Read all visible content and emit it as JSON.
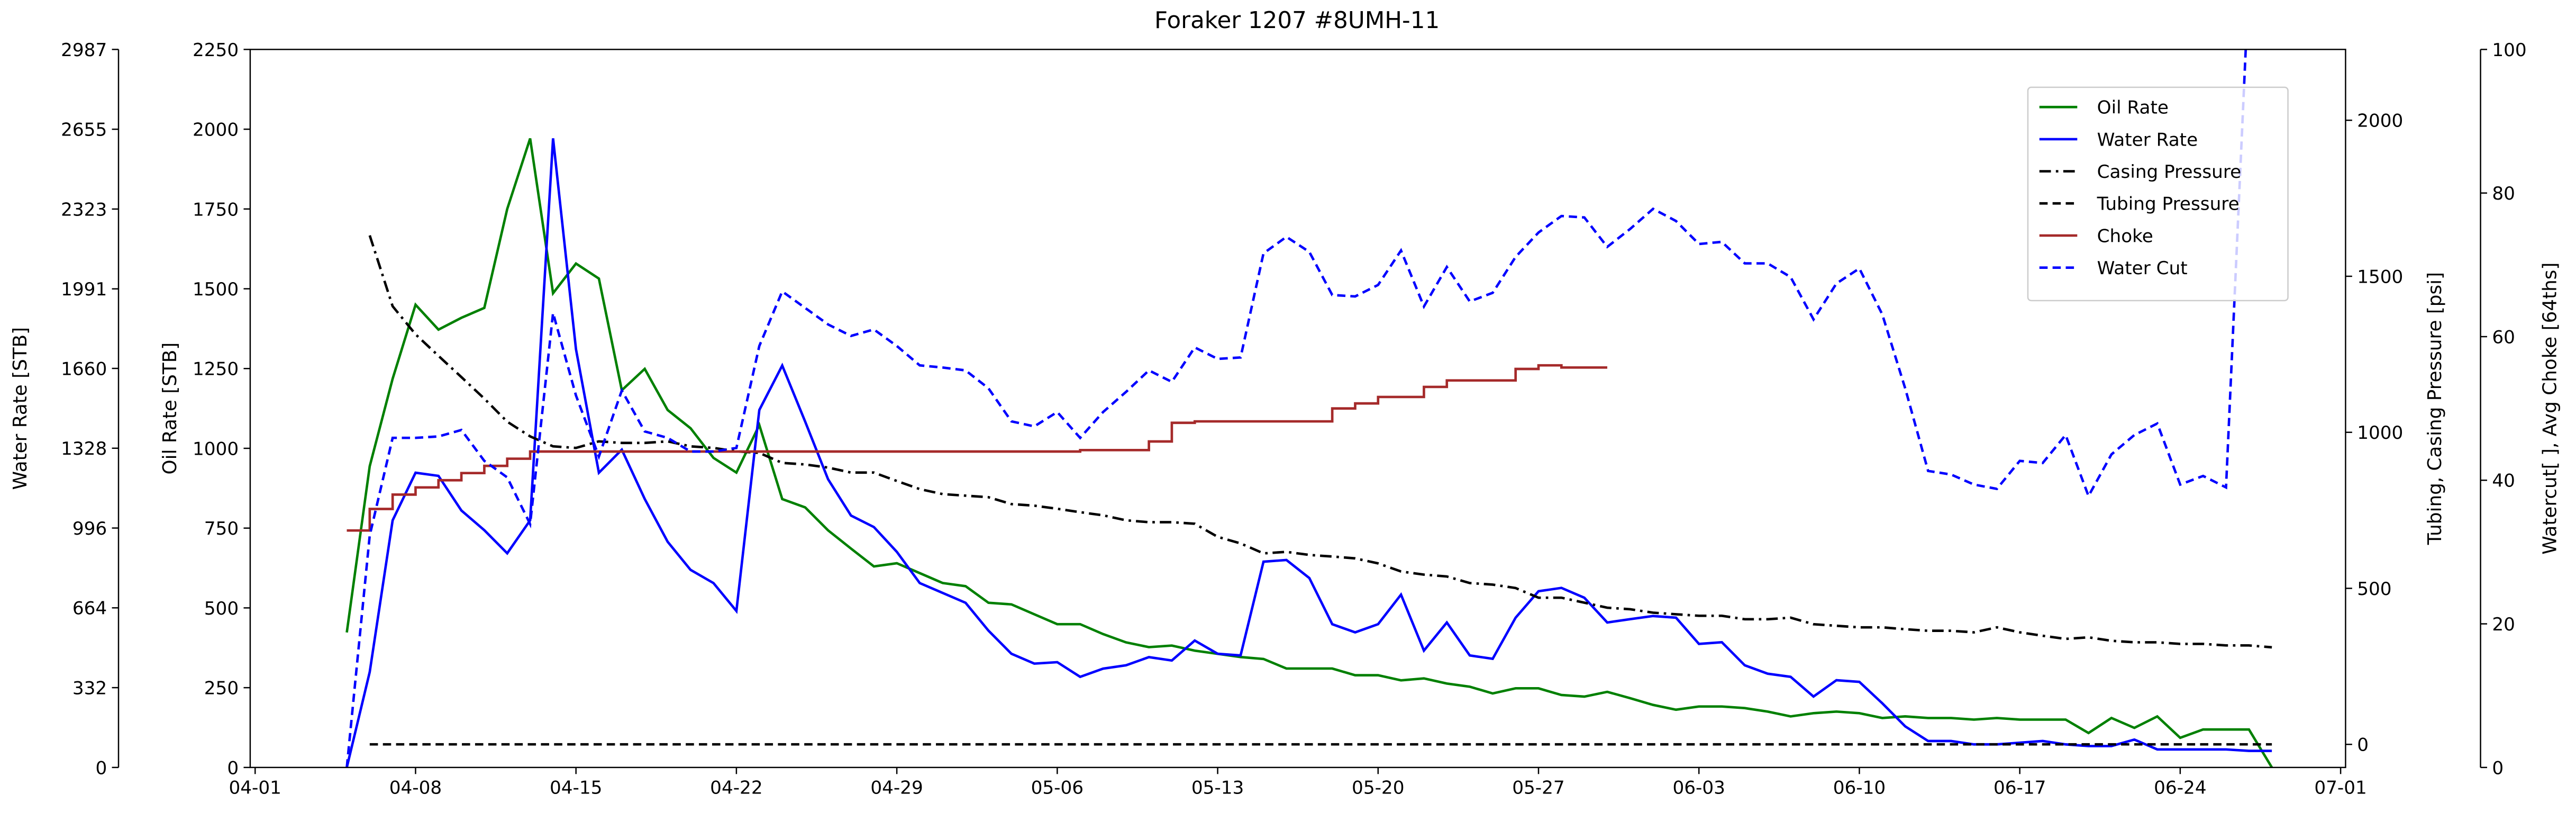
{
  "chart_data": {
    "type": "line",
    "title": "Foraker 1207 #8UMH-11",
    "x": [
      "04-05",
      "04-06",
      "04-07",
      "04-08",
      "04-09",
      "04-10",
      "04-11",
      "04-12",
      "04-13",
      "04-14",
      "04-15",
      "04-16",
      "04-17",
      "04-18",
      "04-19",
      "04-20",
      "04-21",
      "04-22",
      "04-23",
      "04-24",
      "04-25",
      "04-26",
      "04-27",
      "04-28",
      "04-29",
      "04-30",
      "05-01",
      "05-02",
      "05-03",
      "05-04",
      "05-05",
      "05-06",
      "05-07",
      "05-08",
      "05-09",
      "05-10",
      "05-11",
      "05-12",
      "05-13",
      "05-14",
      "05-15",
      "05-16",
      "05-17",
      "05-18",
      "05-19",
      "05-20",
      "05-21",
      "05-22",
      "05-23",
      "05-24",
      "05-25",
      "05-26",
      "05-27",
      "05-28",
      "05-29",
      "05-30",
      "05-31",
      "06-01",
      "06-02",
      "06-03",
      "06-04",
      "06-05",
      "06-06",
      "06-07",
      "06-08",
      "06-09",
      "06-10",
      "06-11",
      "06-12",
      "06-13",
      "06-14",
      "06-15",
      "06-16",
      "06-17",
      "06-18",
      "06-19",
      "06-20",
      "06-21",
      "06-22",
      "06-23",
      "06-24",
      "06-25",
      "06-26",
      "06-27",
      "06-28"
    ],
    "xlim": [
      "04-01",
      "07-01"
    ],
    "xticks": [
      "04-01",
      "04-08",
      "04-15",
      "04-22",
      "04-29",
      "05-06",
      "05-13",
      "05-20",
      "05-27",
      "06-03",
      "06-10",
      "06-17",
      "06-24",
      "07-01"
    ],
    "axes": [
      {
        "label": "Water Rate [STB]",
        "lim": [
          0,
          2987
        ],
        "ticks": [
          0,
          332,
          664,
          996,
          1328,
          1660,
          1991,
          2323,
          2655,
          2987
        ]
      },
      {
        "label": "Oil Rate [STB]",
        "lim": [
          0,
          2250
        ],
        "ticks": [
          0,
          250,
          500,
          750,
          1000,
          1250,
          1500,
          1750,
          2000,
          2250
        ]
      },
      {
        "label": "Tubing, Casing Pressure [psi]",
        "lim": [
          -74,
          2227
        ],
        "ticks": [
          0,
          500,
          1000,
          1500,
          2000
        ]
      },
      {
        "label": "Watercut[ ], Avg Choke [64ths]",
        "lim": [
          0,
          100
        ],
        "ticks": [
          0,
          20,
          40,
          60,
          80,
          100
        ]
      }
    ],
    "legend": "upper right",
    "series": [
      {
        "name": "Oil Rate",
        "color": "#008000",
        "linestyle": "solid",
        "axis": 1,
        "values": [
          423,
          944,
          1218,
          1450,
          1372,
          1409,
          1440,
          1750,
          1971,
          1486,
          1579,
          1532,
          1182,
          1249,
          1120,
          1063,
          970,
          924,
          1073,
          841,
          815,
          743,
          686,
          630,
          640,
          609,
          578,
          568,
          516,
          511,
          480,
          449,
          449,
          418,
          392,
          377,
          382,
          366,
          356,
          346,
          340,
          310,
          310,
          310,
          289,
          289,
          273,
          279,
          263,
          253,
          232,
          248,
          248,
          227,
          222,
          237,
          217,
          196,
          181,
          191,
          191,
          186,
          175,
          160,
          170,
          175,
          170,
          155,
          160,
          155,
          155,
          150,
          155,
          150,
          150,
          150,
          108,
          155,
          124,
          160,
          93,
          119,
          119,
          119,
          0
        ]
      },
      {
        "name": "Water Rate",
        "color": "#0000ff",
        "linestyle": "solid",
        "axis": 0,
        "values": [
          0,
          397,
          1028,
          1226,
          1213,
          1069,
          987,
          891,
          1028,
          2617,
          1740,
          1226,
          1322,
          1117,
          939,
          822,
          767,
          651,
          1487,
          1672,
          1439,
          1199,
          1048,
          1000,
          897,
          767,
          726,
          685,
          569,
          473,
          432,
          438,
          377,
          411,
          425,
          459,
          445,
          528,
          473,
          466,
          856,
          863,
          788,
          596,
          562,
          596,
          719,
          486,
          603,
          466,
          452,
          623,
          733,
          747,
          706,
          603,
          617,
          630,
          623,
          514,
          521,
          425,
          390,
          377,
          295,
          363,
          356,
          267,
          171,
          110,
          110,
          96,
          96,
          103,
          110,
          96,
          89,
          89,
          116,
          75,
          75,
          75,
          75,
          69,
          69
        ]
      },
      {
        "name": "Casing Pressure",
        "color": "#000000",
        "linestyle": "dashdot",
        "axis": 2,
        "values": [
          null,
          1631,
          1404,
          1314,
          1245,
          1177,
          1108,
          1034,
          987,
          955,
          950,
          971,
          966,
          966,
          971,
          955,
          950,
          939,
          934,
          902,
          897,
          887,
          871,
          871,
          844,
          818,
          802,
          797,
          792,
          770,
          765,
          755,
          744,
          734,
          718,
          712,
          712,
          707,
          665,
          644,
          612,
          617,
          607,
          602,
          596,
          580,
          554,
          544,
          538,
          517,
          512,
          501,
          470,
          470,
          454,
          438,
          433,
          422,
          417,
          412,
          412,
          401,
          401,
          406,
          385,
          380,
          375,
          375,
          369,
          364,
          364,
          359,
          375,
          359,
          348,
          338,
          343,
          332,
          327,
          327,
          322,
          322,
          317,
          317,
          311
        ]
      },
      {
        "name": "Tubing Pressure",
        "color": "#000000",
        "linestyle": "dashed",
        "axis": 2,
        "values": [
          null,
          0,
          0,
          0,
          0,
          0,
          0,
          0,
          0,
          0,
          0,
          0,
          0,
          0,
          0,
          0,
          0,
          0,
          0,
          0,
          0,
          0,
          0,
          0,
          0,
          0,
          0,
          0,
          0,
          0,
          0,
          0,
          0,
          0,
          0,
          0,
          0,
          0,
          0,
          0,
          0,
          0,
          0,
          0,
          0,
          0,
          0,
          0,
          0,
          0,
          0,
          0,
          0,
          0,
          0,
          0,
          0,
          0,
          0,
          0,
          0,
          0,
          0,
          0,
          0,
          0,
          0,
          0,
          0,
          0,
          0,
          0,
          0,
          0,
          0,
          0,
          0,
          0,
          0,
          0,
          0,
          0,
          0,
          0,
          0
        ]
      },
      {
        "name": "Choke",
        "color": "#a52a2a",
        "linestyle": "step",
        "axis": 3,
        "values": [
          33,
          36,
          38,
          39,
          40,
          41,
          42,
          43,
          44,
          44,
          44,
          44,
          44,
          44,
          44,
          44,
          44,
          44,
          44,
          44,
          44,
          44,
          44,
          44,
          44,
          44,
          44,
          44,
          44,
          44,
          44,
          44,
          44.2,
          44.2,
          44.2,
          45.4,
          48,
          48.2,
          48.2,
          48.2,
          48.2,
          48.2,
          48.2,
          50,
          50.7,
          51.6,
          51.6,
          53,
          53.9,
          53.9,
          53.9,
          55.5,
          56,
          55.7,
          55.7,
          55.7,
          null,
          null,
          null,
          null,
          null,
          null,
          null,
          null,
          null,
          null,
          null,
          null,
          null,
          null,
          null,
          null,
          null,
          null,
          null,
          null,
          null,
          null,
          null,
          null,
          null,
          null,
          null,
          null,
          null
        ]
      },
      {
        "name": "Water Cut",
        "color": "#0000ff",
        "linestyle": "dashed",
        "axis": 3,
        "values": [
          0,
          32.3,
          45.9,
          45.9,
          46.1,
          47,
          42.7,
          40.4,
          33.9,
          63.3,
          51.8,
          43.3,
          52.5,
          46.8,
          45.9,
          44,
          44,
          44.5,
          58.7,
          66.3,
          64,
          61.7,
          60.1,
          61,
          58.7,
          56,
          55.7,
          55.3,
          52.8,
          48.2,
          47.5,
          49.5,
          45.9,
          49.5,
          52.3,
          55.3,
          53.7,
          58.5,
          56.9,
          57.1,
          71.6,
          73.9,
          71.8,
          65.8,
          65.6,
          67.2,
          72,
          64.2,
          69.7,
          64.9,
          66.1,
          71.1,
          74.5,
          76.8,
          76.6,
          72.5,
          75,
          77.8,
          76.1,
          72.9,
          73.2,
          70.2,
          70.2,
          68.3,
          62.4,
          67.4,
          69.5,
          63.1,
          52.8,
          41.3,
          40.8,
          39.4,
          38.8,
          42.7,
          42.4,
          46.3,
          37.8,
          43.6,
          46.3,
          47.9,
          39.4,
          40.6,
          39,
          110,
          null
        ]
      }
    ]
  }
}
